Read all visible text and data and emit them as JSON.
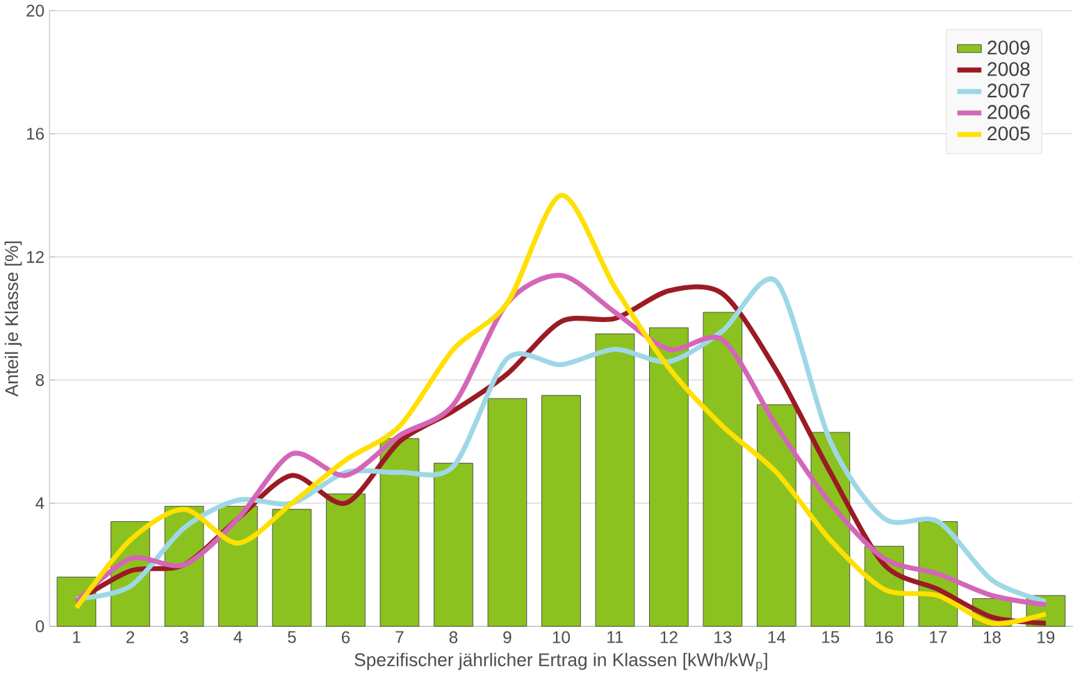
{
  "chart_data": {
    "type": "bar",
    "xlabel": "Spezifischer jährlicher Ertrag in Klassen [kWh/kW$_{p}$]",
    "ylabel": "Anteil je Klasse [%]",
    "categories": [
      "1",
      "2",
      "3",
      "4",
      "5",
      "6",
      "7",
      "8",
      "9",
      "10",
      "11",
      "12",
      "13",
      "14",
      "15",
      "16",
      "17",
      "18",
      "19"
    ],
    "series": [
      {
        "name": "2009",
        "color": "#8cc21f",
        "values": [
          1.6,
          3.4,
          3.9,
          3.9,
          3.8,
          4.3,
          6.1,
          5.3,
          7.4,
          7.5,
          9.5,
          9.7,
          10.2,
          7.2,
          6.3,
          2.6,
          3.4,
          0.9,
          1.0
        ]
      },
      {
        "name": "2008",
        "type": "line",
        "color": "#9b1b24",
        "values": [
          0.8,
          1.8,
          2.0,
          3.5,
          4.9,
          4.0,
          6.0,
          7.0,
          8.2,
          9.9,
          10.0,
          10.9,
          10.8,
          8.3,
          5.0,
          2.0,
          1.2,
          0.3,
          0.1
        ]
      },
      {
        "name": "2007",
        "type": "line",
        "color": "#9ed8e6",
        "values": [
          0.9,
          1.3,
          3.2,
          4.1,
          4.0,
          5.0,
          5.0,
          5.2,
          8.7,
          8.5,
          9.0,
          8.6,
          9.6,
          11.2,
          6.0,
          3.5,
          3.4,
          1.5,
          0.8
        ]
      },
      {
        "name": "2006",
        "type": "line",
        "color": "#d466b8",
        "values": [
          0.8,
          2.2,
          2.0,
          3.5,
          5.6,
          4.9,
          6.2,
          7.2,
          10.5,
          11.4,
          10.2,
          9.0,
          9.3,
          6.5,
          4.0,
          2.2,
          1.7,
          1.0,
          0.7
        ]
      },
      {
        "name": "2005",
        "type": "line",
        "color": "#ffe000",
        "values": [
          0.6,
          2.8,
          3.8,
          2.7,
          4.0,
          5.4,
          6.5,
          9.0,
          10.5,
          14.0,
          11.0,
          8.4,
          6.5,
          5.0,
          2.8,
          1.2,
          1.0,
          0.1,
          0.4
        ]
      }
    ],
    "ylim": [
      0,
      20
    ],
    "yticks": [
      0,
      4,
      8,
      12,
      16,
      20
    ],
    "grid": "y",
    "legend": "top right",
    "line_style": "solid",
    "marker": "none"
  }
}
